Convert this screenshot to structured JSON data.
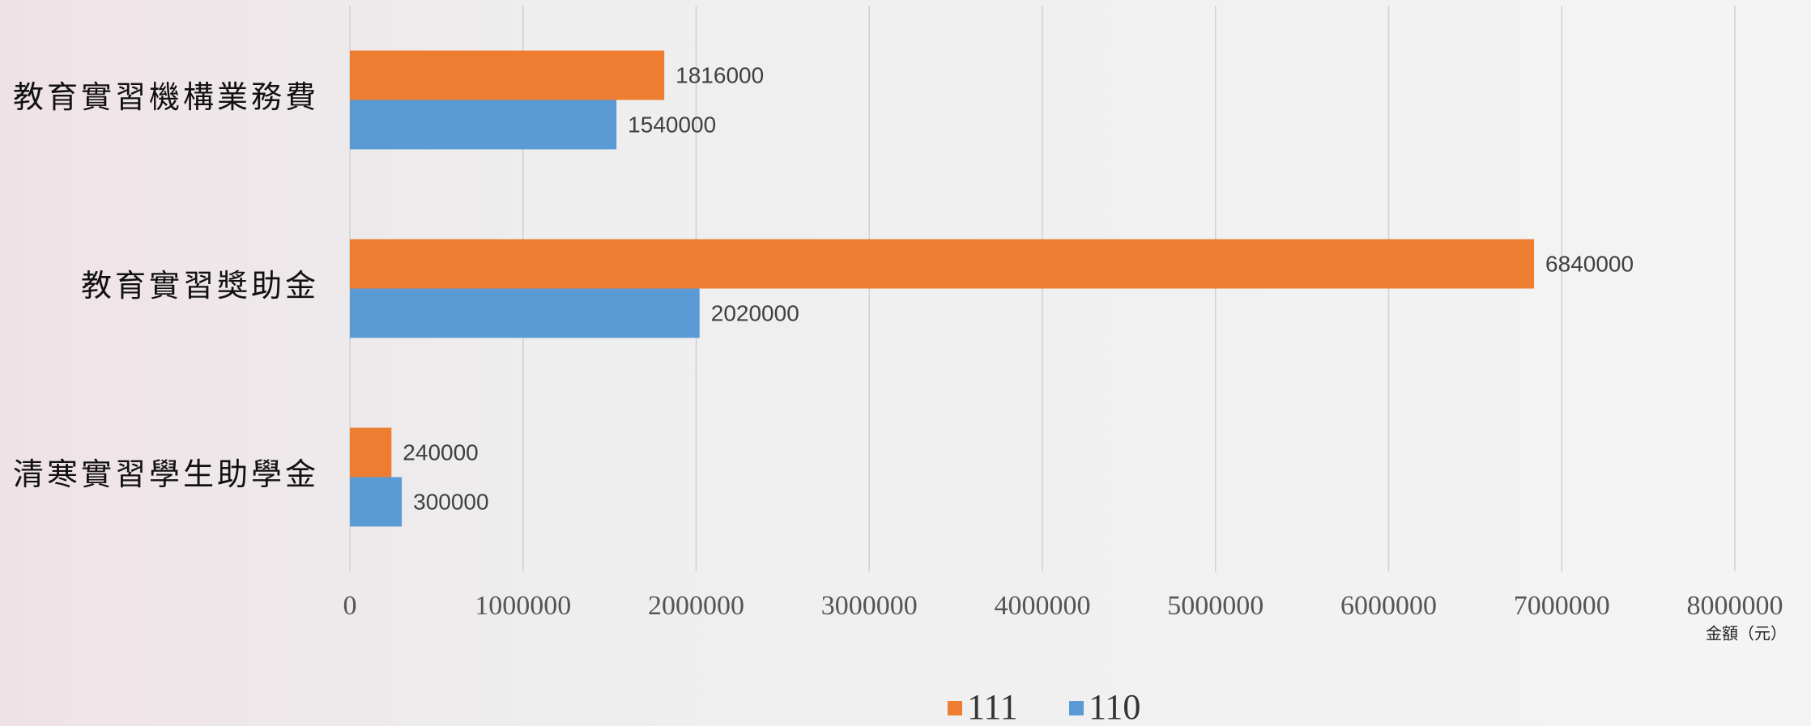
{
  "chart_data": {
    "type": "bar",
    "orientation": "horizontal",
    "categories": [
      "教育實習機構業務費",
      "教育實習獎助金",
      "清寒實習學生助學金"
    ],
    "series": [
      {
        "name": "111",
        "color": "#ED7D31",
        "values": [
          1816000,
          6840000,
          240000
        ]
      },
      {
        "name": "110",
        "color": "#5B9BD5",
        "values": [
          1540000,
          2020000,
          300000
        ]
      }
    ],
    "xlim": [
      0,
      8000000
    ],
    "xticks": [
      0,
      1000000,
      2000000,
      3000000,
      4000000,
      5000000,
      6000000,
      7000000,
      8000000
    ],
    "xlabel": "金額（元）",
    "grid": true,
    "legend": "bottom"
  }
}
